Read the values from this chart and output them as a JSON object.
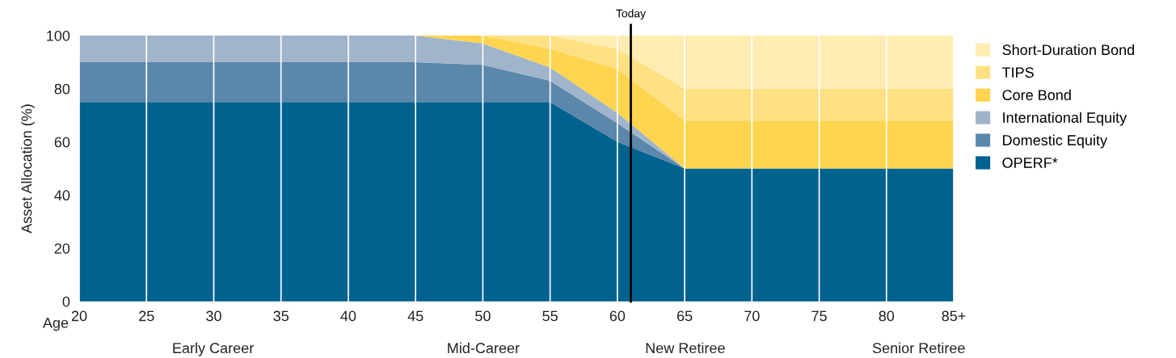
{
  "chart_data": {
    "type": "area",
    "stacked": true,
    "ylabel": "Asset Allocation (%)",
    "xlabel": "Age",
    "x": [
      20,
      25,
      30,
      35,
      40,
      45,
      50,
      55,
      60,
      65,
      70,
      75,
      80,
      85
    ],
    "xlim": [
      20,
      85
    ],
    "xticks": [
      20,
      25,
      30,
      35,
      40,
      45,
      50,
      55,
      60,
      65,
      70,
      75,
      80,
      {
        "value": 85,
        "label": "85+"
      }
    ],
    "ylim": [
      0,
      100
    ],
    "yticks": [
      0,
      20,
      40,
      60,
      80,
      100
    ],
    "grid": "x",
    "legend": "right",
    "series": [
      {
        "name": "OPERF*",
        "color": "#00628f",
        "values": [
          75,
          75,
          75,
          75,
          75,
          75,
          75,
          75,
          60,
          50,
          50,
          50,
          50,
          50
        ]
      },
      {
        "name": "Domestic Equity",
        "color": "#5b87ab",
        "values": [
          15,
          15,
          15,
          15,
          15,
          15,
          14,
          8,
          7,
          0,
          0,
          0,
          0,
          0
        ]
      },
      {
        "name": "International Equity",
        "color": "#a0b4cb",
        "values": [
          10,
          10,
          10,
          10,
          10,
          10,
          8,
          5,
          4,
          0,
          0,
          0,
          0,
          0
        ]
      },
      {
        "name": "Core Bond",
        "color": "#ffd54f",
        "values": [
          null,
          null,
          null,
          null,
          null,
          0,
          3,
          7,
          16.5,
          18,
          18,
          18,
          18,
          18
        ]
      },
      {
        "name": "TIPS",
        "color": "#ffe082",
        "values": [
          null,
          null,
          null,
          null,
          null,
          null,
          0,
          5,
          7.5,
          12,
          12,
          12,
          12,
          12
        ]
      },
      {
        "name": "Short-Duration Bond",
        "color": "#ffecb3",
        "values": [
          null,
          null,
          null,
          null,
          null,
          null,
          null,
          0,
          5,
          20,
          20,
          20,
          20,
          20
        ]
      }
    ],
    "ref_lines": [
      {
        "axis": "x",
        "value": 61,
        "label": "Today",
        "color": "#000000"
      }
    ],
    "annotations": [
      "Early Career",
      "Mid-Career",
      "New Retiree",
      "Senior Retiree"
    ]
  }
}
